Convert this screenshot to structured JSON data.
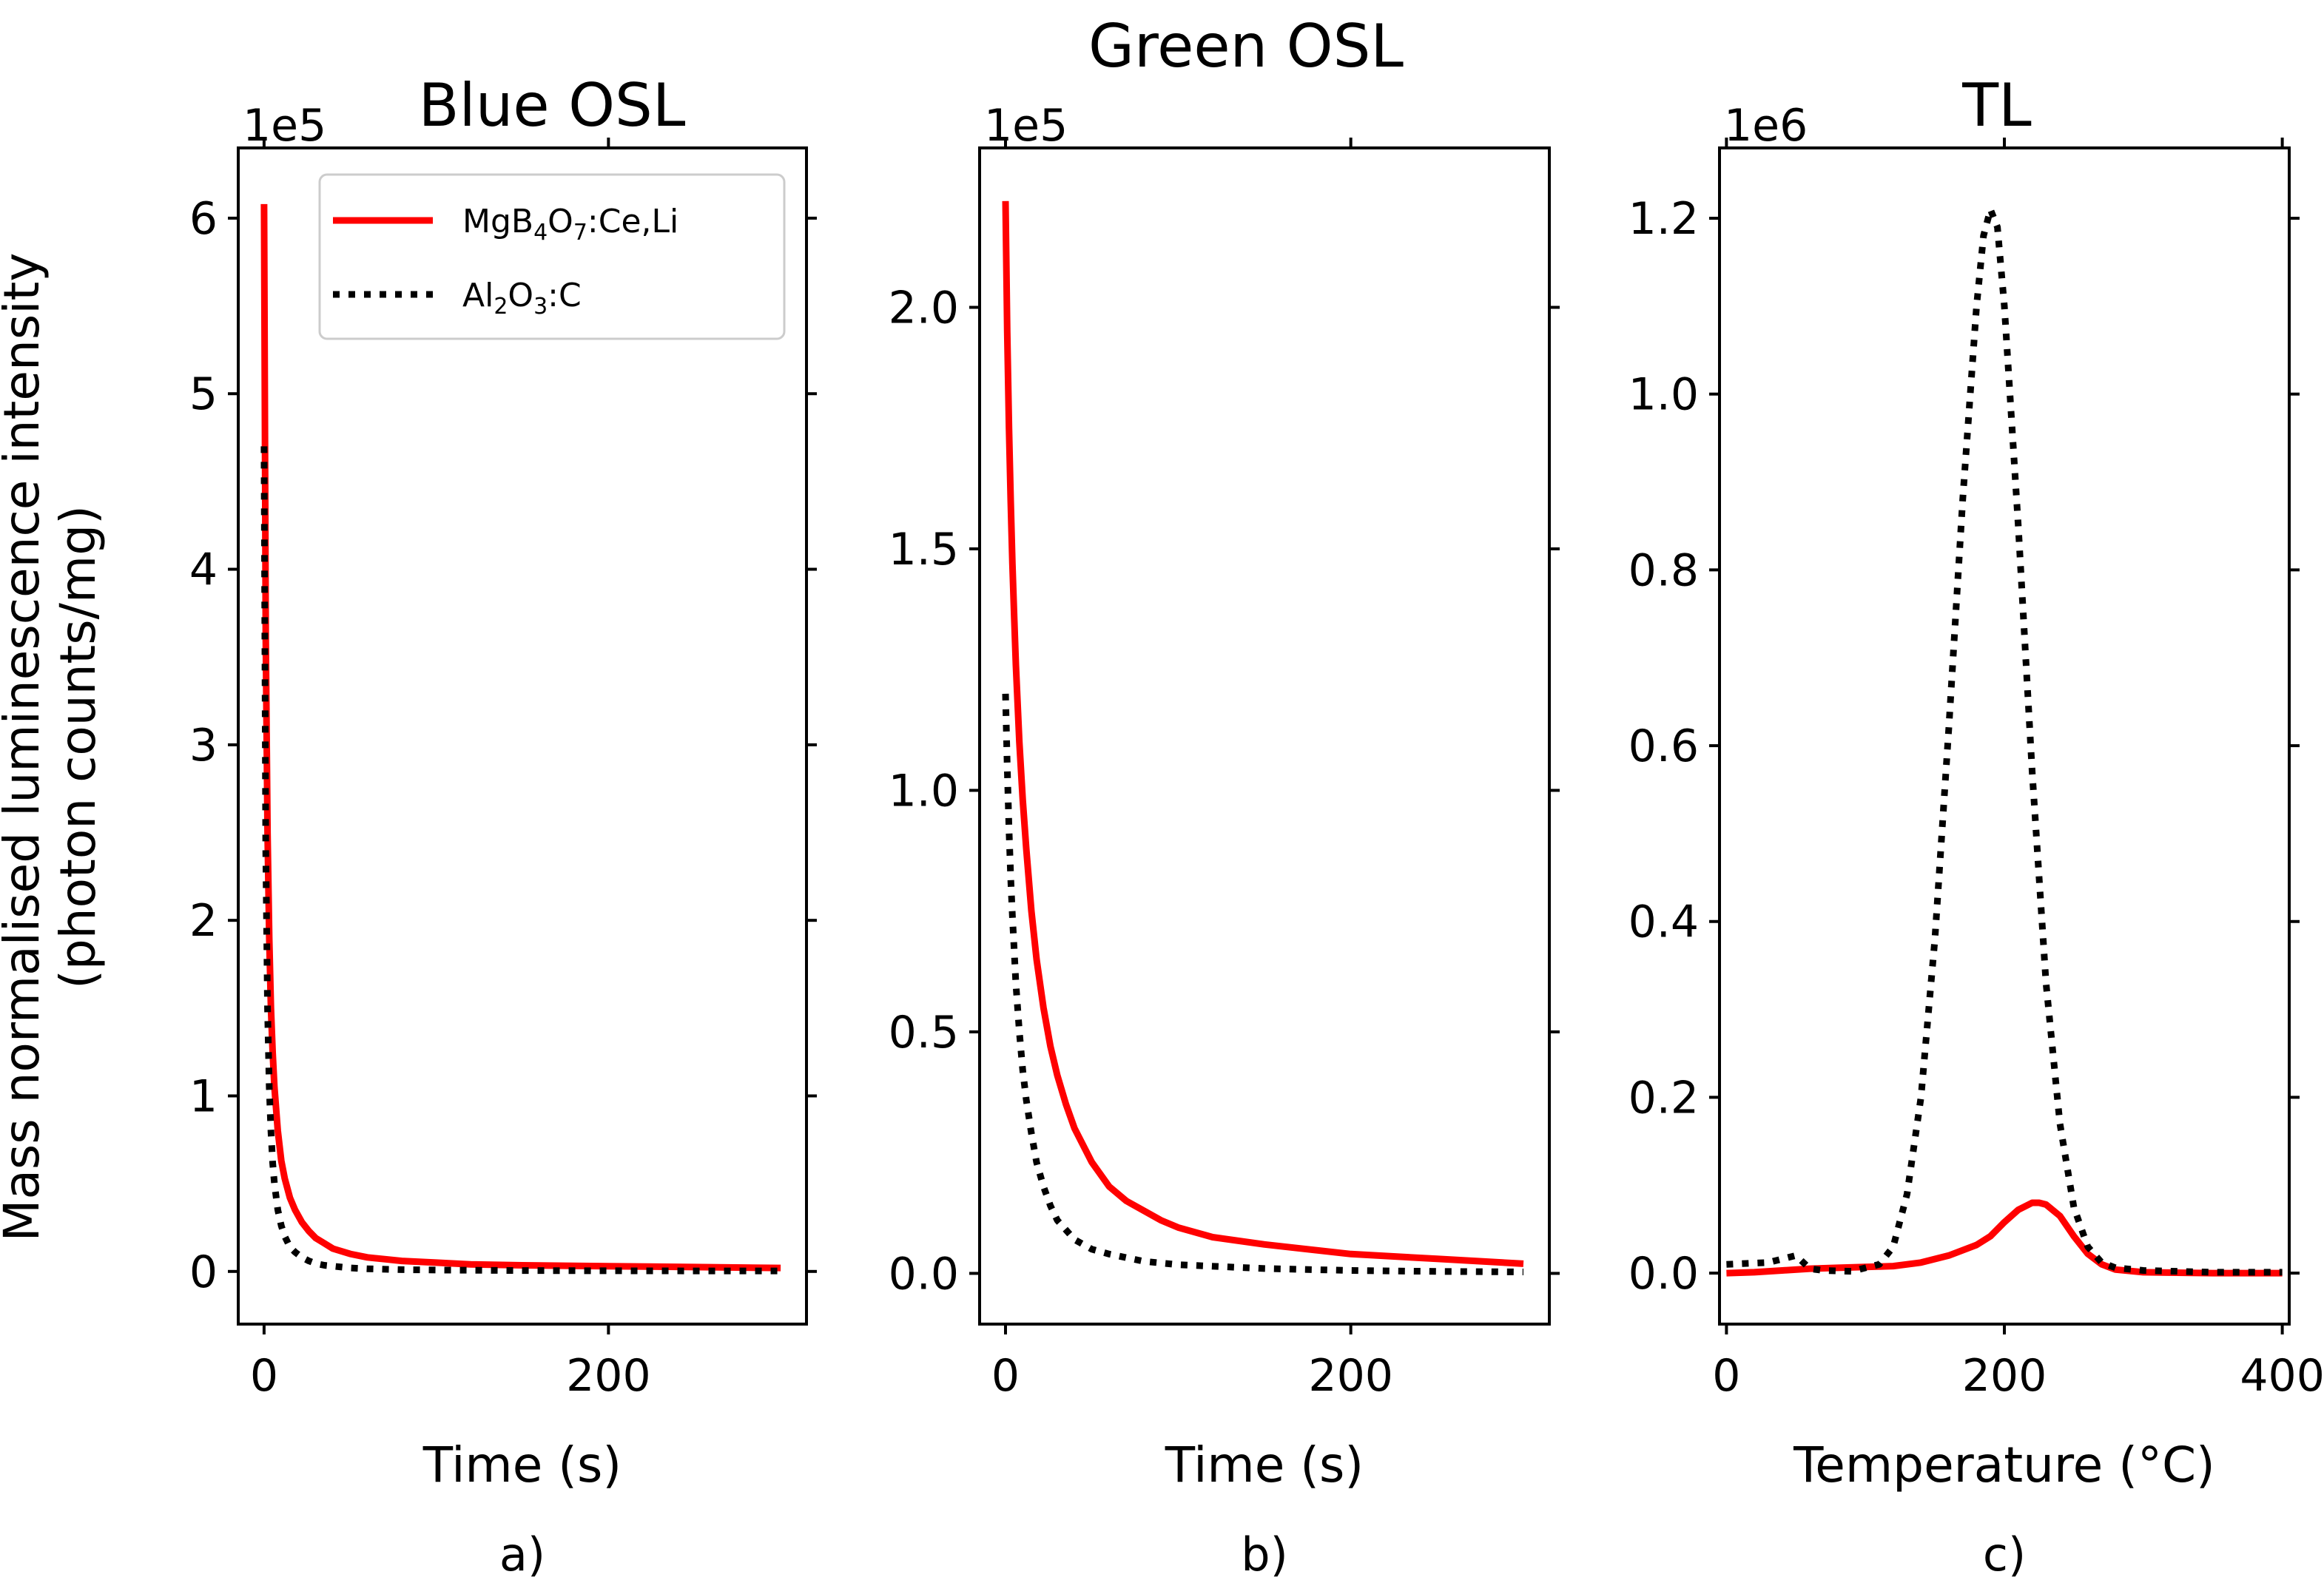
{
  "y_axis_label_line1": "Mass normalised luminescence intensity",
  "y_axis_label_line2": "(photon counts/mg)",
  "colors": {
    "mgb4o7": "#ff0000",
    "al2o3": "#000000"
  },
  "legend": {
    "entries": [
      {
        "series": "mgb4o7",
        "style": "solid",
        "main": "MgB",
        "sub1": "4",
        "mid": "O",
        "sub2": "7",
        "tail": ":Ce,Li"
      },
      {
        "series": "al2o3",
        "style": "dotted",
        "main": "Al",
        "sub1": "2",
        "mid": "O",
        "sub2": "3",
        "tail": ":C"
      }
    ]
  },
  "chart_data": [
    {
      "type": "line",
      "title": "Blue OSL",
      "panel_label": "a)",
      "offset_label": "1e5",
      "xlabel": "Time (s)",
      "ylabel": "Mass normalised luminescence intensity (photon counts/mg)",
      "xlim": [
        -15,
        315
      ],
      "ylim": [
        -0.3,
        6.4
      ],
      "xticks": [
        0,
        200
      ],
      "yticks": [
        0,
        1,
        2,
        3,
        4,
        5,
        6
      ],
      "ytick_labels": [
        "0",
        "1",
        "2",
        "3",
        "4",
        "5",
        "6"
      ],
      "series": [
        {
          "name": "MgB4O7:Ce,Li",
          "key": "mgb4o7",
          "style": "solid",
          "x": [
            0,
            1,
            2,
            3,
            4,
            5,
            6,
            8,
            10,
            12,
            15,
            18,
            22,
            26,
            30,
            35,
            40,
            50,
            60,
            70,
            80,
            100,
            120,
            150,
            200,
            250,
            300
          ],
          "y": [
            6.08,
            3.6,
            2.5,
            1.9,
            1.5,
            1.25,
            1.05,
            0.8,
            0.63,
            0.53,
            0.42,
            0.35,
            0.28,
            0.23,
            0.19,
            0.16,
            0.13,
            0.1,
            0.08,
            0.07,
            0.06,
            0.05,
            0.04,
            0.035,
            0.03,
            0.025,
            0.02
          ]
        },
        {
          "name": "Al2O3:C",
          "key": "al2o3",
          "style": "dotted",
          "x": [
            0,
            1,
            2,
            3,
            4,
            5,
            6,
            8,
            10,
            12,
            15,
            18,
            22,
            26,
            30,
            35,
            40,
            50,
            60,
            80,
            100,
            150,
            200,
            250,
            300
          ],
          "y": [
            4.7,
            2.4,
            1.5,
            1.05,
            0.8,
            0.62,
            0.5,
            0.35,
            0.26,
            0.2,
            0.14,
            0.11,
            0.08,
            0.06,
            0.045,
            0.035,
            0.03,
            0.02,
            0.015,
            0.01,
            0.008,
            0.005,
            0.004,
            0.003,
            0.003
          ]
        }
      ]
    },
    {
      "type": "line",
      "title": "Green OSL",
      "panel_label": "b)",
      "offset_label": "1e5",
      "xlabel": "Time (s)",
      "ylabel": "",
      "xlim": [
        -15,
        315
      ],
      "ylim": [
        -0.105,
        2.33
      ],
      "xticks": [
        0,
        200
      ],
      "yticks": [
        0,
        0.5,
        1,
        1.5,
        2
      ],
      "ytick_labels": [
        "0.0",
        "0.5",
        "1.0",
        "1.5",
        "2.0"
      ],
      "series": [
        {
          "name": "MgB4O7:Ce,Li",
          "key": "mgb4o7",
          "style": "solid",
          "x": [
            0,
            1,
            2,
            3,
            4,
            5,
            6,
            8,
            10,
            12,
            15,
            18,
            22,
            26,
            30,
            35,
            40,
            50,
            60,
            70,
            80,
            90,
            100,
            120,
            150,
            200,
            250,
            300
          ],
          "y": [
            2.22,
            1.95,
            1.75,
            1.6,
            1.47,
            1.36,
            1.26,
            1.1,
            0.98,
            0.88,
            0.75,
            0.65,
            0.55,
            0.47,
            0.41,
            0.35,
            0.3,
            0.23,
            0.18,
            0.15,
            0.13,
            0.11,
            0.095,
            0.075,
            0.06,
            0.04,
            0.03,
            0.02
          ]
        },
        {
          "name": "Al2O3:C",
          "key": "al2o3",
          "style": "dotted",
          "x": [
            0,
            1,
            2,
            3,
            4,
            5,
            6,
            8,
            10,
            12,
            15,
            18,
            22,
            26,
            30,
            35,
            40,
            50,
            60,
            80,
            100,
            150,
            200,
            250,
            300
          ],
          "y": [
            1.2,
            1.05,
            0.92,
            0.82,
            0.74,
            0.67,
            0.6,
            0.5,
            0.42,
            0.36,
            0.29,
            0.23,
            0.18,
            0.14,
            0.11,
            0.09,
            0.07,
            0.05,
            0.04,
            0.025,
            0.018,
            0.01,
            0.006,
            0.004,
            0.003
          ]
        }
      ]
    },
    {
      "type": "line",
      "title": "TL",
      "panel_label": "c)",
      "offset_label": "1e6",
      "xlabel": "Temperature (°C)",
      "ylabel": "",
      "xlim": [
        -5,
        405
      ],
      "ylim": [
        -0.058,
        1.28
      ],
      "xticks": [
        0,
        200,
        400
      ],
      "yticks": [
        0,
        0.2,
        0.4,
        0.6,
        0.8,
        1.0,
        1.2
      ],
      "ytick_labels": [
        "0.0",
        "0.2",
        "0.4",
        "0.6",
        "0.8",
        "1.0",
        "1.2"
      ],
      "series": [
        {
          "name": "MgB4O7:Ce,Li",
          "key": "mgb4o7",
          "style": "solid",
          "x": [
            0,
            20,
            40,
            60,
            80,
            100,
            120,
            140,
            160,
            180,
            190,
            200,
            210,
            220,
            225,
            230,
            240,
            250,
            260,
            270,
            280,
            300,
            350,
            400
          ],
          "y": [
            0.0,
            0.001,
            0.003,
            0.005,
            0.006,
            0.007,
            0.008,
            0.012,
            0.02,
            0.032,
            0.042,
            0.058,
            0.072,
            0.08,
            0.08,
            0.078,
            0.065,
            0.042,
            0.022,
            0.01,
            0.004,
            0.001,
            0.0,
            0.0
          ]
        },
        {
          "name": "Al2O3:C",
          "key": "al2o3",
          "style": "dotted",
          "x": [
            0,
            30,
            50,
            60,
            70,
            90,
            110,
            120,
            130,
            140,
            150,
            160,
            170,
            180,
            185,
            190,
            195,
            200,
            210,
            220,
            230,
            240,
            250,
            260,
            270,
            280,
            300,
            350,
            400
          ],
          "y": [
            0.01,
            0.012,
            0.02,
            0.005,
            0.003,
            0.002,
            0.01,
            0.03,
            0.09,
            0.2,
            0.38,
            0.62,
            0.88,
            1.1,
            1.18,
            1.21,
            1.19,
            1.1,
            0.85,
            0.57,
            0.33,
            0.17,
            0.075,
            0.03,
            0.012,
            0.006,
            0.003,
            0.001,
            0.001
          ]
        }
      ]
    }
  ]
}
